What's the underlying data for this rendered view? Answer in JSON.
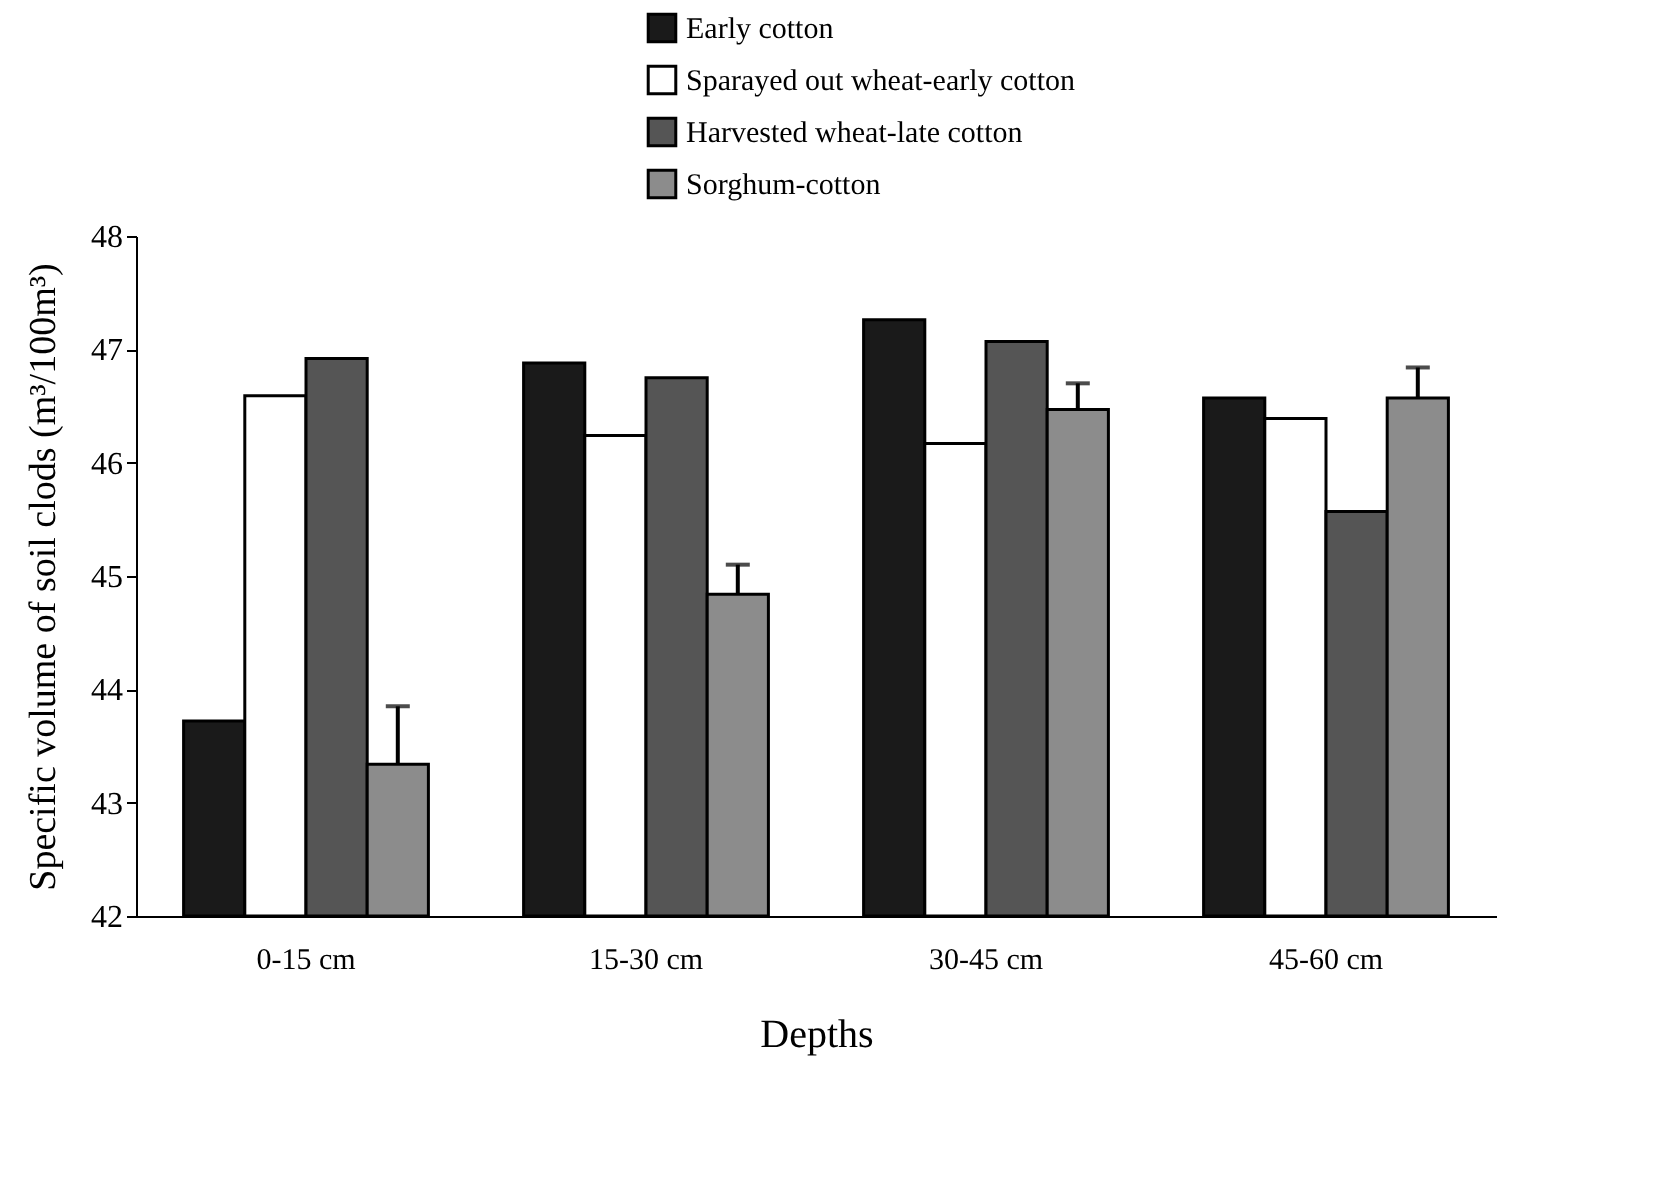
{
  "chart_data": {
    "type": "bar",
    "xlabel": "Depths",
    "ylabel": "Specific volume of soil clods (m³/100m³)",
    "categories": [
      "0-15 cm",
      "15-30 cm",
      "30-45 cm",
      "45-60 cm"
    ],
    "series": [
      {
        "name": "Early cotton",
        "color": "#1a1a1a",
        "values": [
          43.72,
          46.88,
          47.26,
          46.57
        ]
      },
      {
        "name": "Sparayed out wheat-early cotton",
        "color": "#ffffff",
        "values": [
          46.59,
          46.24,
          46.17,
          46.39
        ]
      },
      {
        "name": "Harvested wheat-late cotton",
        "color": "#555555",
        "values": [
          46.92,
          46.75,
          47.07,
          45.57
        ]
      },
      {
        "name": "Sorghum-cotton",
        "color": "#8c8c8c",
        "values": [
          43.34,
          44.84,
          46.47,
          46.57
        ],
        "errors": [
          0.51,
          0.26,
          0.23,
          0.27
        ]
      }
    ],
    "ylim": [
      42,
      48
    ],
    "yticks": [
      42,
      43,
      44,
      45,
      46,
      47,
      48
    ],
    "grid": false,
    "legend": "top right"
  }
}
